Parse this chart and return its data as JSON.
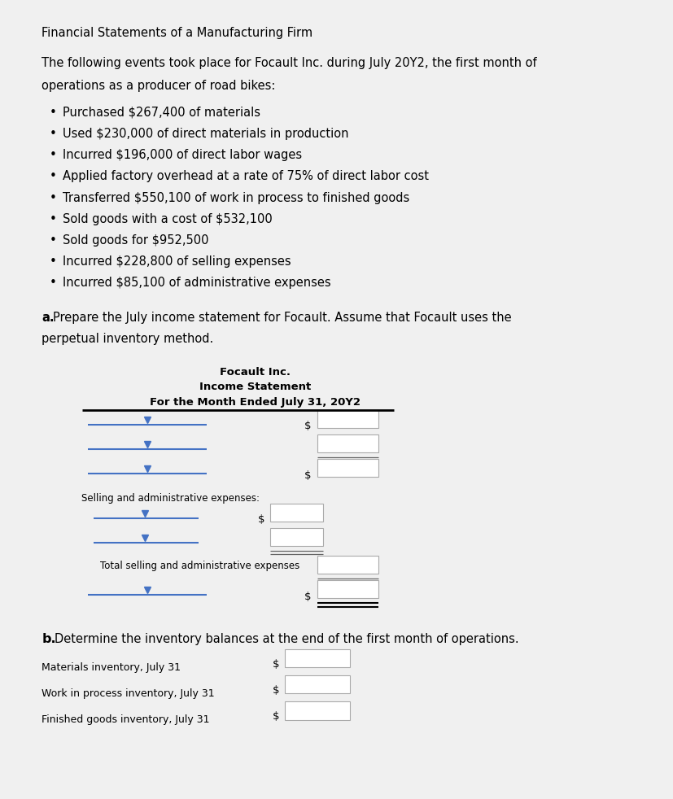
{
  "bg_color": "#f0f0f0",
  "page_color": "#ffffff",
  "title": "Financial Statements of a Manufacturing Firm",
  "intro_line1": "The following events took place for Focault Inc. during July 20Y2, the first month of",
  "intro_line2": "operations as a producer of road bikes:",
  "bullets": [
    "Purchased $267,400 of materials",
    "Used $230,000 of direct materials in production",
    "Incurred $196,000 of direct labor wages",
    "Applied factory overhead at a rate of 75% of direct labor cost",
    "Transferred $550,100 of work in process to finished goods",
    "Sold goods with a cost of $532,100",
    "Sold goods for $952,500",
    "Incurred $228,800 of selling expenses",
    "Incurred $85,100 of administrative expenses"
  ],
  "part_a_bold": "a.",
  "part_a_rest_line1": "  Prepare the July income statement for Focault. Assume that Focault uses the",
  "part_a_line2": "perpetual inventory method.",
  "is_title1": "Focault Inc.",
  "is_title2": "Income Statement",
  "is_title3": "For the Month Ended July 31, 20Y2",
  "selling_admin_label": "Selling and administrative expenses:",
  "total_label": "Total selling and administrative expenses",
  "part_b_bold": "b.",
  "part_b_rest": "  Determine the inventory balances at the end of the first month of operations.",
  "inv_labels": [
    "Materials inventory, July 31",
    "Work in process inventory, July 31",
    "Finished goods inventory, July 31"
  ],
  "blue": "#4472c4",
  "black": "#000000",
  "gray": "#aaaaaa",
  "darkgray": "#666666"
}
